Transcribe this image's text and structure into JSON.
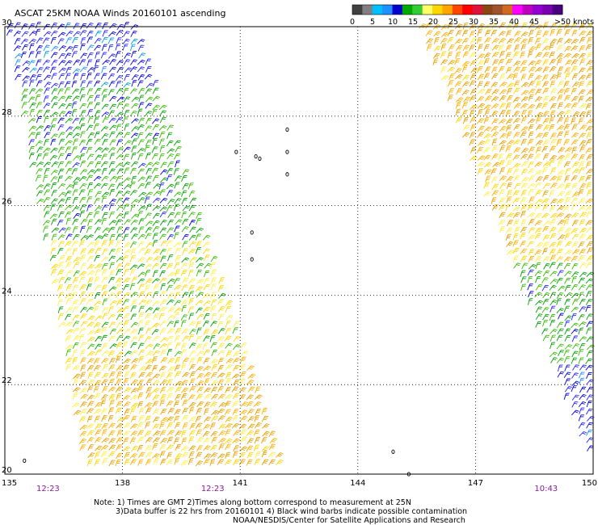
{
  "chart_data": {
    "type": "wind-barb-map",
    "title": "ASCAT 25KM NOAA Winds 20160101 ascending",
    "x_ticks": [
      "135",
      "138",
      "141",
      "144",
      "147",
      "150"
    ],
    "x_range": [
      135,
      150
    ],
    "y_ticks": [
      "30",
      "28",
      "26",
      "24",
      "22",
      "20"
    ],
    "y_range": [
      20,
      30
    ],
    "grid": true,
    "pass_times": [
      {
        "label": "12:23",
        "lon": 136.1
      },
      {
        "label": "12:23",
        "lon": 140.3
      },
      {
        "label": "10:43",
        "lon": 148.8
      }
    ],
    "speed_scale": {
      "labels": [
        "0",
        "5",
        "10",
        "15",
        "20",
        "25",
        "30",
        "35",
        "40",
        "45",
        ">50 knots"
      ],
      "label_values": [
        0,
        5,
        10,
        15,
        20,
        25,
        30,
        35,
        40,
        45,
        50
      ],
      "colors": [
        "#404040",
        "#808080",
        "#00bfff",
        "#1e90ff",
        "#0000cd",
        "#00aa00",
        "#32cd32",
        "#ffff66",
        "#ffd700",
        "#ffa500",
        "#ff4500",
        "#ff0000",
        "#dc143c",
        "#8b4513",
        "#a0522d",
        "#d2691e",
        "#ff00ff",
        "#c000c0",
        "#9400d3",
        "#7b00b0",
        "#4b0082"
      ]
    },
    "swaths": [
      {
        "name": "west",
        "corners_lonlat": [
          [
            135.0,
            30.0
          ],
          [
            138.3,
            30.0
          ],
          [
            142.1,
            20.0
          ],
          [
            137.0,
            20.0
          ]
        ],
        "speed_zones": [
          {
            "lat_range": [
              28.6,
              30.0
            ],
            "speed_knots": 12
          },
          {
            "lat_range": [
              25.2,
              28.6
            ],
            "speed_knots": 17
          },
          {
            "lat_range": [
              22.6,
              25.2
            ],
            "speed_knots": 21
          },
          {
            "lat_range": [
              20.0,
              22.6
            ],
            "speed_knots": 26
          }
        ]
      },
      {
        "name": "east",
        "corners_lonlat": [
          [
            145.5,
            30.0
          ],
          [
            150.0,
            30.0
          ],
          [
            150.0,
            20.0
          ]
        ],
        "speed_zones": [
          {
            "lat_range": [
              27.0,
              30.0
            ],
            "speed_knots": 27
          },
          {
            "lat_range": [
              24.6,
              27.0
            ],
            "speed_knots": 24
          },
          {
            "lat_range": [
              22.4,
              24.6
            ],
            "speed_knots": 17
          },
          {
            "lat_range": [
              20.0,
              22.4
            ],
            "speed_knots": 12
          }
        ]
      }
    ],
    "islands_lonlat": [
      [
        141.4,
        27.1
      ],
      [
        141.5,
        27.05
      ],
      [
        142.2,
        27.7
      ],
      [
        142.2,
        27.2
      ],
      [
        142.2,
        26.7
      ],
      [
        140.9,
        27.2
      ],
      [
        141.3,
        25.4
      ],
      [
        141.3,
        24.8
      ],
      [
        144.9,
        20.5
      ],
      [
        145.3,
        20.0
      ],
      [
        135.5,
        20.3
      ]
    ]
  },
  "notes": [
    "Note: 1) Times are GMT 2)Times along bottom correspond to measurement at 25N",
    "3)Data buffer is 22 hrs from 20160101 4) Black wind barbs indicate possible contamination",
    "NOAA/NESDIS/Center for Satellite Applications and Research"
  ]
}
